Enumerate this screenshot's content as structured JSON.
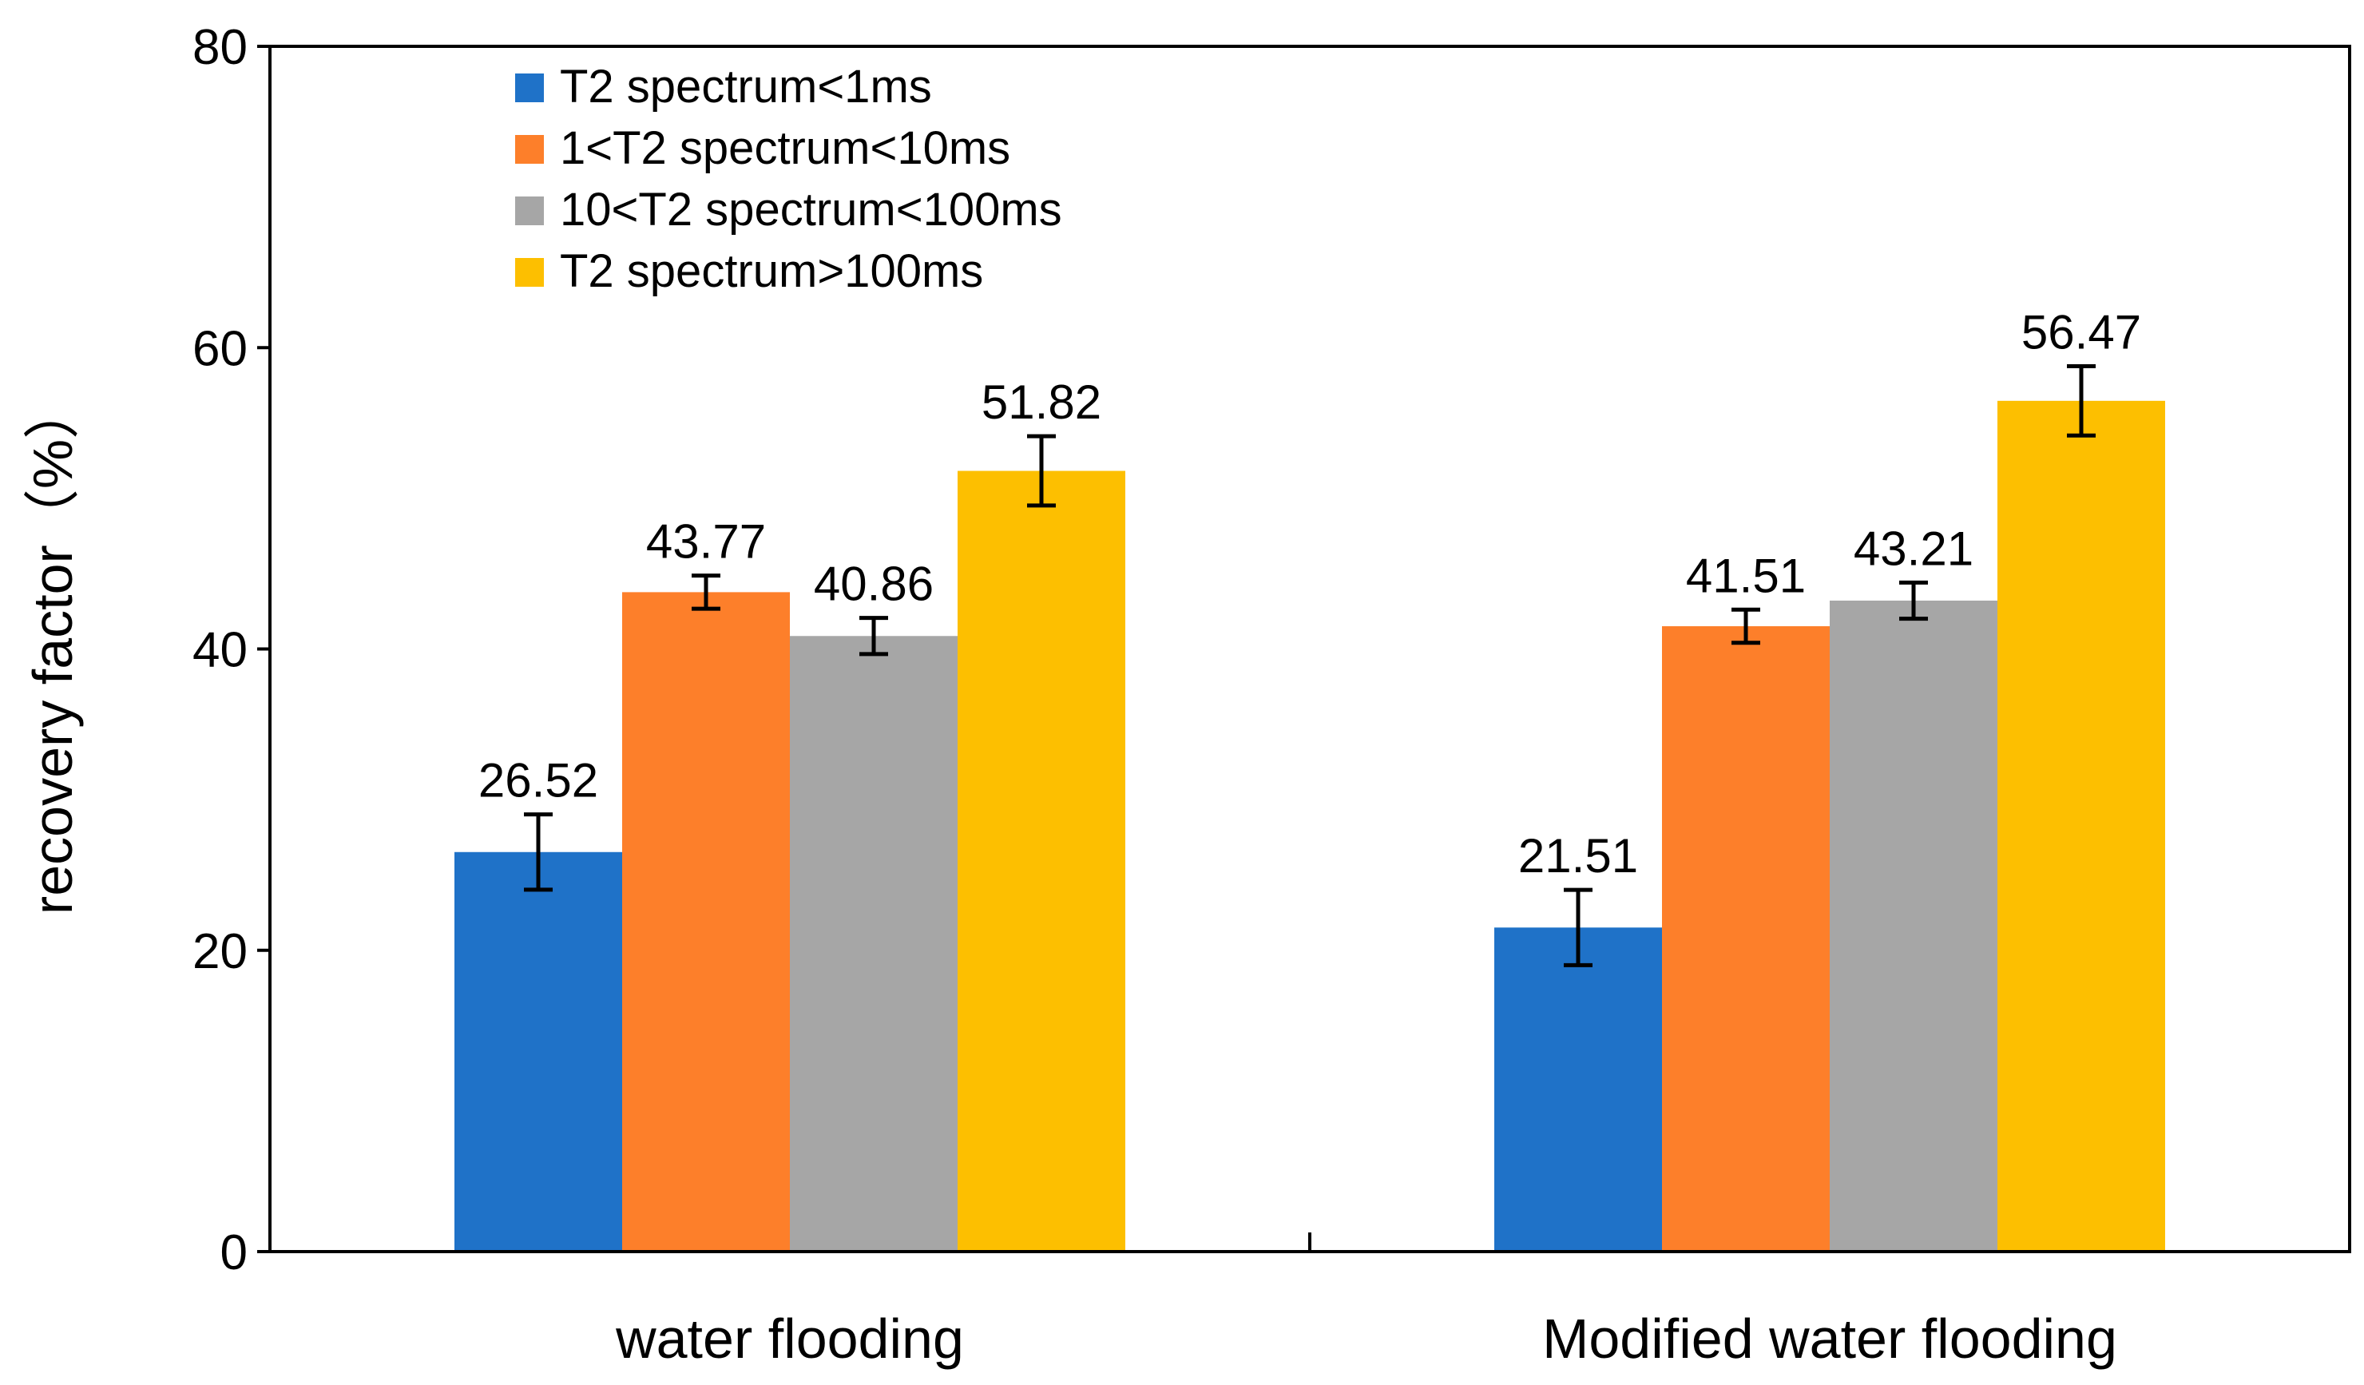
{
  "chart_data": {
    "type": "bar",
    "categories": [
      "water flooding",
      "Modified water flooding"
    ],
    "series": [
      {
        "name": "T2 spectrum<1ms",
        "values": [
          26.52,
          21.51
        ],
        "errors": [
          2.5,
          2.5
        ],
        "color": "#1f72c8"
      },
      {
        "name": "1<T2 spectrum<10ms",
        "values": [
          43.77,
          41.51
        ],
        "errors": [
          1.1,
          1.1
        ],
        "color": "#fd7f2a"
      },
      {
        "name": "10<T2 spectrum<100ms",
        "values": [
          40.86,
          43.21
        ],
        "errors": [
          1.2,
          1.2
        ],
        "color": "#a6a6a6"
      },
      {
        "name": "T2 spectrum>100ms",
        "values": [
          51.82,
          56.47
        ],
        "errors": [
          2.3,
          2.3
        ],
        "color": "#fdbf00"
      }
    ],
    "data_labels": [
      [
        "26.52",
        "21.51"
      ],
      [
        "43.77",
        "41.51"
      ],
      [
        "40.86",
        "43.21"
      ],
      [
        "51.82",
        "56.47"
      ]
    ],
    "title": "",
    "xlabel": "",
    "ylabel": "recovery factor（%）",
    "ylim": [
      0,
      80
    ],
    "yticks": [
      "0",
      "20",
      "40",
      "60",
      "80"
    ],
    "grid": false,
    "legend": "top-left"
  }
}
